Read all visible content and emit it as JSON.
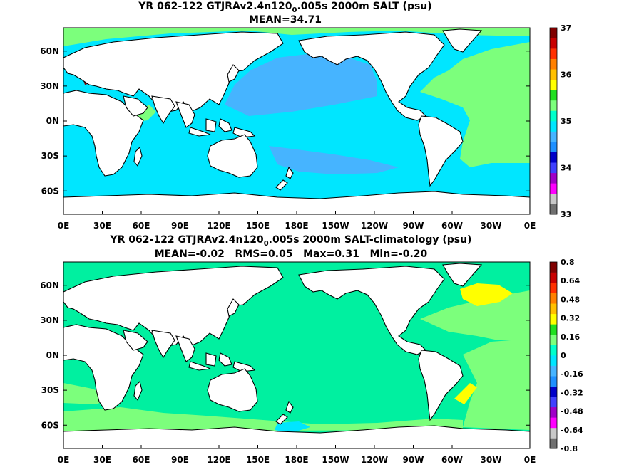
{
  "chart_data": [
    {
      "type": "heatmap",
      "title_parts": [
        "YR 062-122 GTJRAv2.4n120",
        "0",
        ".005s 2000m SALT (psu)"
      ],
      "subtitle": "MEAN=34.71",
      "xticks": [
        "0E",
        "30E",
        "60E",
        "90E",
        "120E",
        "150E",
        "180E",
        "150W",
        "120W",
        "90W",
        "60W",
        "30W",
        "0E"
      ],
      "yticks": [
        "60N",
        "30N",
        "0N",
        "30S",
        "60S"
      ],
      "colorbar": {
        "labels": [
          "33",
          "34",
          "35",
          "36",
          "37"
        ],
        "colors": [
          "#707070",
          "#c8c8c8",
          "#ff00ff",
          "#a000c8",
          "#4040ff",
          "#0000c8",
          "#1e90ff",
          "#46b4ff",
          "#00e6ff",
          "#00ffcc",
          "#7cff7c",
          "#20e020",
          "#ffff00",
          "#ffc000",
          "#ff8000",
          "#ff3000",
          "#c80000",
          "#800000"
        ]
      },
      "ocean_base_color": "#00e6ff",
      "regions": [
        {
          "name": "north-pacific",
          "color": "#46b4ff"
        },
        {
          "name": "south-pacific",
          "color": "#46b4ff"
        },
        {
          "name": "atlantic",
          "color": "#7cff7c"
        },
        {
          "name": "arctic",
          "color": "#7cff7c"
        },
        {
          "name": "mediterranean",
          "color": "#800000"
        },
        {
          "name": "indian-nw",
          "color": "#7cff7c"
        }
      ]
    },
    {
      "type": "heatmap",
      "title_parts": [
        "YR 062-122 GTJRAv2.4n120",
        "0",
        ".005s 2000m SALT-climatology (psu)"
      ],
      "subtitle": "MEAN=-0.02   RMS=0.05   Max=0.31   Min=-0.20",
      "xticks": [
        "0E",
        "30E",
        "60E",
        "90E",
        "120E",
        "150E",
        "180E",
        "150W",
        "120W",
        "90W",
        "60W",
        "30W",
        "0E"
      ],
      "yticks": [
        "60N",
        "30N",
        "0N",
        "30S",
        "60S"
      ],
      "colorbar": {
        "labels": [
          "-0.8",
          "-0.64",
          "-0.48",
          "-0.32",
          "-0.16",
          "0",
          "0.16",
          "0.32",
          "0.48",
          "0.64",
          "0.8"
        ],
        "colors": [
          "#707070",
          "#c8c8c8",
          "#ff00ff",
          "#a000c8",
          "#4040ff",
          "#0000c8",
          "#1e90ff",
          "#46b4ff",
          "#00e6ff",
          "#00ffcc",
          "#7cff7c",
          "#20e020",
          "#ffff00",
          "#ffc000",
          "#ff8000",
          "#ff3000",
          "#c80000",
          "#800000"
        ]
      },
      "ocean_base_color": "#00f0a0",
      "regions": [
        {
          "name": "labrador",
          "color": "#ffff00"
        },
        {
          "name": "atlantic-band",
          "color": "#7cff7c"
        },
        {
          "name": "south-atlantic",
          "color": "#7cff7c"
        },
        {
          "name": "southern-ocean",
          "color": "#7cff7c"
        },
        {
          "name": "agulhas",
          "color": "#7cff7c"
        },
        {
          "name": "ross",
          "color": "#00e6ff"
        },
        {
          "name": "argentine",
          "color": "#ffff00"
        }
      ]
    }
  ]
}
